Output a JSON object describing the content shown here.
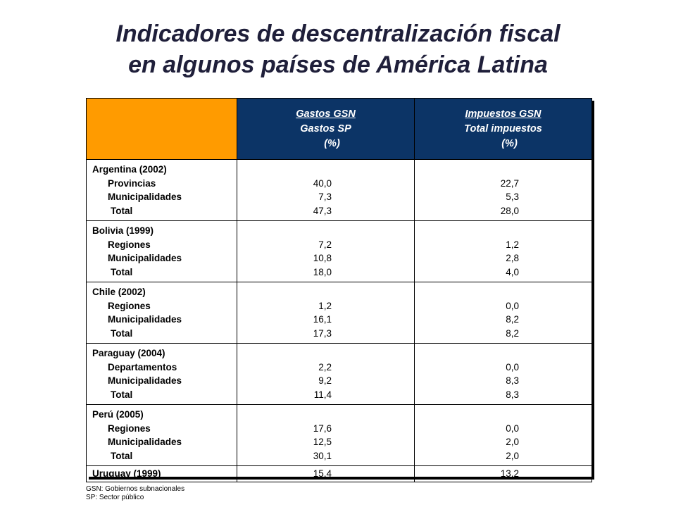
{
  "title": {
    "line1": "Indicadores de descentralización fiscal",
    "line2": "en algunos países de América Latina"
  },
  "table": {
    "head_col2": [
      "Gastos GSN",
      "Gastos SP",
      "(%)"
    ],
    "head_col3": [
      "Impuestos GSN",
      "Total impuestos",
      "(%)"
    ],
    "groups": [
      {
        "name": "Argentina (2002)",
        "rows": [
          {
            "label": "Provincias",
            "gastos": "40,0",
            "impuestos": "22,7"
          },
          {
            "label": "Municipalidades",
            "gastos": "7,3",
            "impuestos": "5,3"
          },
          {
            "label": "Total",
            "gastos": "47,3",
            "impuestos": "28,0"
          }
        ]
      },
      {
        "name": "Bolivia (1999)",
        "rows": [
          {
            "label": "Regiones",
            "gastos": "7,2",
            "impuestos": "1,2"
          },
          {
            "label": "Municipalidades",
            "gastos": "10,8",
            "impuestos": "2,8"
          },
          {
            "label": "Total",
            "gastos": "18,0",
            "impuestos": "4,0"
          }
        ]
      },
      {
        "name": "Chile (2002)",
        "rows": [
          {
            "label": "Regiones",
            "gastos": "1,2",
            "impuestos": "0,0"
          },
          {
            "label": "Municipalidades",
            "gastos": "16,1",
            "impuestos": "8,2"
          },
          {
            "label": "Total",
            "gastos": "17,3",
            "impuestos": "8,2"
          }
        ]
      },
      {
        "name": "Paraguay (2004)",
        "rows": [
          {
            "label": "Departamentos",
            "gastos": "2,2",
            "impuestos": "0,0"
          },
          {
            "label": "Municipalidades",
            "gastos": "9,2",
            "impuestos": "8,3"
          },
          {
            "label": "Total",
            "gastos": "11,4",
            "impuestos": "8,3"
          }
        ]
      },
      {
        "name": "Perú (2005)",
        "rows": [
          {
            "label": "Regiones",
            "gastos": "17,6",
            "impuestos": "0,0"
          },
          {
            "label": "Municipalidades",
            "gastos": "12,5",
            "impuestos": "2,0"
          },
          {
            "label": "Total",
            "gastos": "30,1",
            "impuestos": "2,0"
          }
        ]
      }
    ],
    "last_row": {
      "name": "Uruguay (1999)",
      "gastos": "15,4",
      "impuestos": "13,2"
    }
  },
  "footnotes": [
    "GSN: Gobiernos subnacionales",
    "SP: Sector público"
  ],
  "colors": {
    "header_blue": "#0c3466",
    "corner_orange": "#ff9b00",
    "title_text": "#1f1f3a"
  }
}
